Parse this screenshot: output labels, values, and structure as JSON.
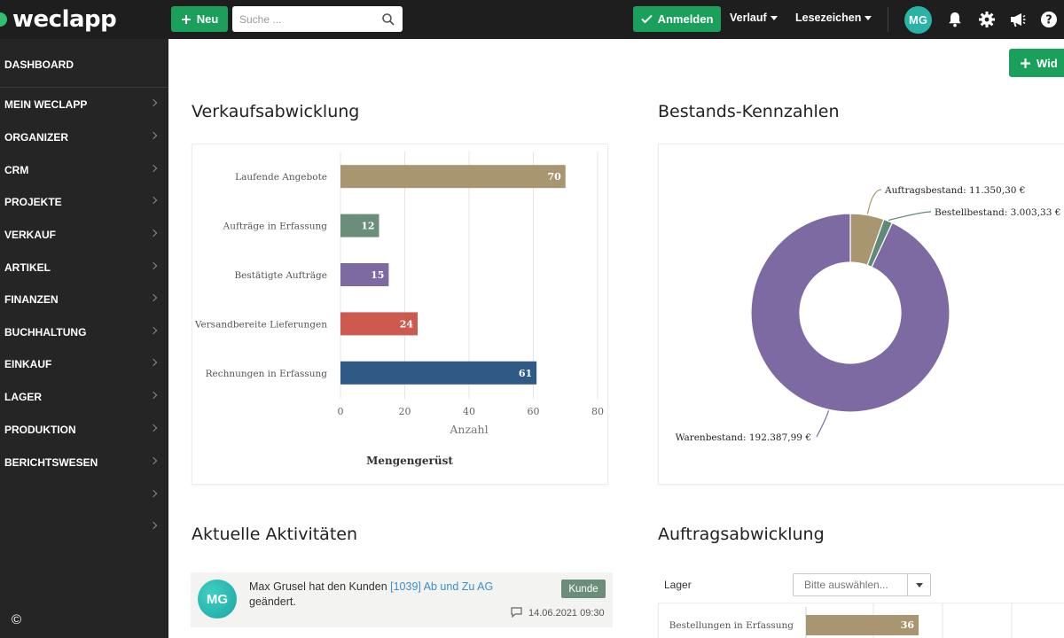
{
  "topbar": {
    "logo": "weclapp",
    "new_button": "Neu",
    "search_placeholder": "Suche ...",
    "login_button": "Anmelden",
    "history": "Verlauf",
    "bookmarks": "Lesezeichen",
    "avatar": "MG",
    "brand_color": "#1aa05a"
  },
  "sidebar": {
    "items": [
      {
        "label": "DASHBOARD",
        "chevron": false
      },
      {
        "label": "MEIN WECLAPP",
        "chevron": true
      },
      {
        "label": "ORGANIZER",
        "chevron": true
      },
      {
        "label": "CRM",
        "chevron": true
      },
      {
        "label": "PROJEKTE",
        "chevron": true
      },
      {
        "label": "VERKAUF",
        "chevron": true
      },
      {
        "label": "ARTIKEL",
        "chevron": true
      },
      {
        "label": "FINANZEN",
        "chevron": true
      },
      {
        "label": "BUCHHALTUNG",
        "chevron": true
      },
      {
        "label": "EINKAUF",
        "chevron": true
      },
      {
        "label": "LAGER",
        "chevron": true
      },
      {
        "label": "PRODUKTION",
        "chevron": true
      },
      {
        "label": "BERICHTSWESEN",
        "chevron": true
      },
      {
        "label": "",
        "chevron": true
      },
      {
        "label": "",
        "chevron": true
      }
    ],
    "copyright": "©"
  },
  "main": {
    "widget_button": "Wid",
    "sales_title": "Verkaufsabwicklung",
    "stock_title": "Bestands-Kennzahlen",
    "activities_title": "Aktuelle Aktivitäten",
    "orders_title": "Auftragsabwicklung"
  },
  "activity": {
    "avatar": "MG",
    "text_before": "Max Grusel hat den Kunden ",
    "link": "[1039] Ab und Zu AG",
    "text_after": " geändert.",
    "badge": "Kunde",
    "timestamp": "14.06.2021 09:30"
  },
  "orders": {
    "lager_label": "Lager",
    "select_placeholder": "Bitte auswählen..."
  },
  "chart_data": [
    {
      "type": "bar",
      "orientation": "horizontal",
      "categories": [
        "Laufende Angebote",
        "Aufträge in Erfassung",
        "Bestätigte Aufträge",
        "Versandbereite Lieferungen",
        "Rechnungen in Erfassung"
      ],
      "values": [
        70,
        12,
        15,
        24,
        61
      ],
      "colors": [
        "#a89670",
        "#6b8e7a",
        "#7d6aa3",
        "#cc5a4e",
        "#2e5a85"
      ],
      "xlabel": "Anzahl",
      "xticks": [
        0,
        20,
        40,
        60,
        80
      ],
      "xlim": [
        0,
        80
      ],
      "subtitle": "Mengengerüst"
    },
    {
      "type": "pie",
      "donut": true,
      "slices": [
        {
          "label": "Auftragsbestand: 11.350,30 €",
          "value": 11350.3,
          "color": "#a89670"
        },
        {
          "label": "Bestellbestand: 3.003,33 €",
          "value": 3003.33,
          "color": "#5f8a77"
        },
        {
          "label": "Warenbestand: 192.387,99 €",
          "value": 192387.99,
          "color": "#7d6aa3"
        }
      ]
    },
    {
      "type": "bar",
      "orientation": "horizontal",
      "categories": [
        "Bestellungen in Erfassung"
      ],
      "values": [
        36
      ],
      "colors": [
        "#a89670"
      ]
    }
  ]
}
